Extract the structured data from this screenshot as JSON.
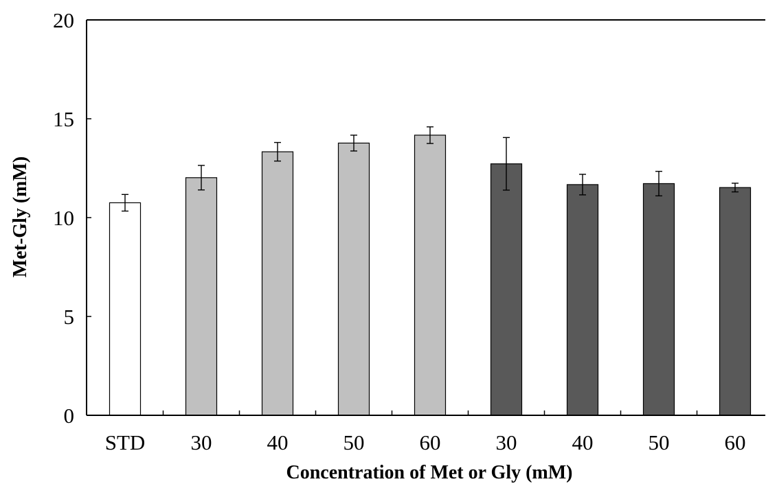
{
  "chart_data": {
    "type": "bar",
    "title": "",
    "xlabel": "Concentration of Met or Gly (mM)",
    "ylabel": "Met-Gly (mM)",
    "ylim": [
      0,
      20
    ],
    "yticks": [
      0,
      5,
      10,
      15,
      20
    ],
    "grid": false,
    "legend": "none",
    "categories": [
      "STD",
      "30",
      "40",
      "50",
      "60",
      "30",
      "40",
      "50",
      "60"
    ],
    "values": [
      10.75,
      12.02,
      13.33,
      13.77,
      14.17,
      12.72,
      11.67,
      11.72,
      11.52
    ],
    "errors": [
      0.42,
      0.62,
      0.47,
      0.4,
      0.42,
      1.33,
      0.52,
      0.62,
      0.22
    ],
    "bar_colors": [
      "#ffffff",
      "#c0c0c0",
      "#c0c0c0",
      "#c0c0c0",
      "#c0c0c0",
      "#595959",
      "#595959",
      "#595959",
      "#595959"
    ]
  }
}
